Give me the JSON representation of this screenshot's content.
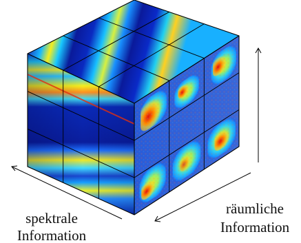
{
  "labels": {
    "spectral_line1": "spektrale",
    "spectral_line2": "Information",
    "spatial_line1": "räumliche",
    "spatial_line2": "Information"
  },
  "colors": {
    "background": "#ffffff",
    "cube_base": "#1e3fb3",
    "colormap": [
      "#00008f",
      "#0020d0",
      "#0070ff",
      "#18c8ff",
      "#7cff8a",
      "#f5ee1c",
      "#ff8a00",
      "#c81400"
    ],
    "grid": "#000000",
    "arrow": "#000000"
  },
  "cube": {
    "grid_divisions": 3,
    "faces": [
      "top-spectral",
      "front-spectral",
      "right-spatial"
    ]
  }
}
